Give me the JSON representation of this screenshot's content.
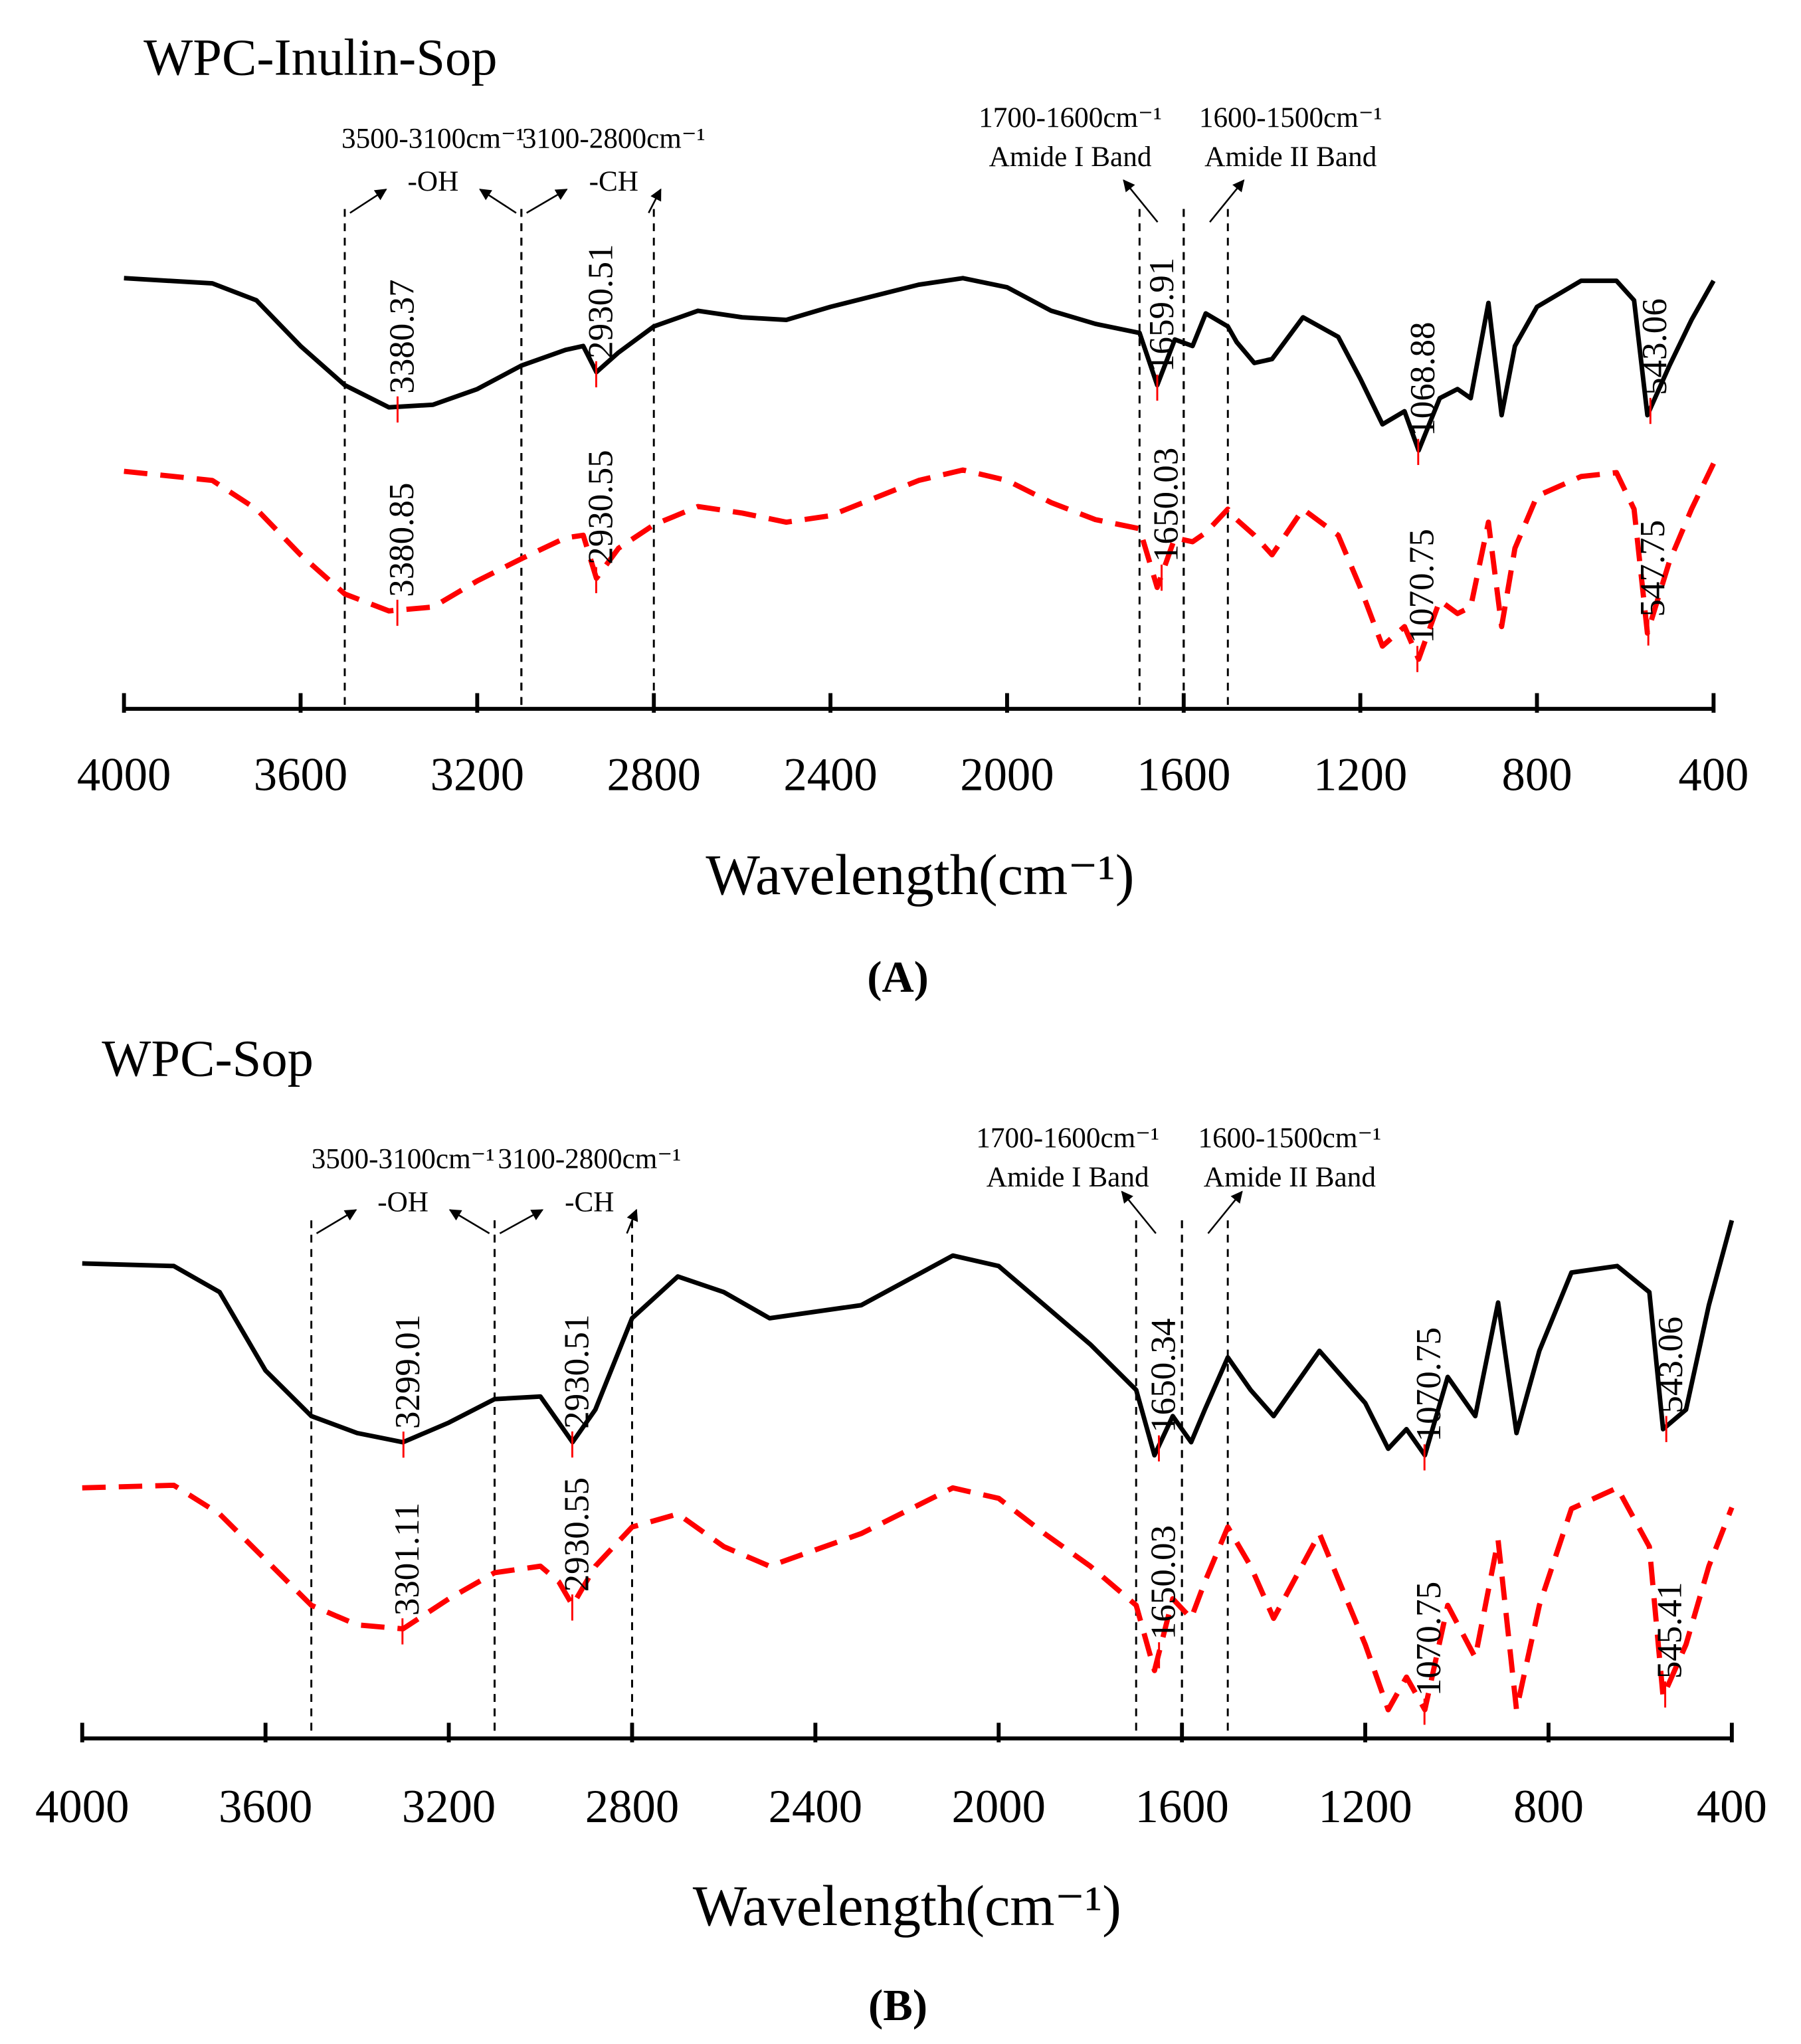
{
  "chart_data": [
    {
      "type": "line",
      "title": "WPC-Inulin-Sop",
      "xlabel": "Wavelength(cm⁻¹)",
      "panel": "(A)",
      "xlim": [
        4000,
        400
      ],
      "xticks": [
        4000,
        3600,
        3200,
        2800,
        2400,
        2000,
        1600,
        1200,
        800,
        400
      ],
      "ylim": [
        0,
        100
      ],
      "bands": [
        {
          "range": [
            3500,
            3100
          ],
          "label": "3500-3100cm⁻¹",
          "group": "-OH"
        },
        {
          "range": [
            3100,
            2800
          ],
          "label": "3100-2800cm⁻¹",
          "group": "-CH"
        },
        {
          "range": [
            1700,
            1600
          ],
          "label": "1700-1600cm⁻¹",
          "group": "Amide I Band"
        },
        {
          "range": [
            1600,
            1500
          ],
          "label": "1600-1500cm⁻¹",
          "group": "Amide II Band"
        }
      ],
      "x": [
        4000,
        3800,
        3700,
        3600,
        3500,
        3400,
        3300,
        3200,
        3100,
        3000,
        2960,
        2930,
        2880,
        2800,
        2700,
        2600,
        2500,
        2400,
        2200,
        2100,
        2000,
        1900,
        1800,
        1700,
        1660,
        1620,
        1580,
        1550,
        1500,
        1480,
        1440,
        1400,
        1330,
        1250,
        1200,
        1150,
        1100,
        1068,
        1020,
        980,
        950,
        910,
        880,
        850,
        800,
        700,
        620,
        580,
        550,
        500,
        450,
        400
      ],
      "series": [
        {
          "color": "#000000",
          "style": "solid",
          "values": [
            82.5,
            81.5,
            78.25,
            69.5,
            62,
            57.75,
            58.25,
            61.25,
            65.75,
            68.75,
            69.5,
            64.5,
            68.25,
            73.25,
            76.25,
            75,
            74.5,
            77,
            81.25,
            82.5,
            80.75,
            76.25,
            73.75,
            72,
            62,
            70.75,
            69.5,
            75.75,
            73.25,
            70.25,
            66.25,
            67,
            75,
            71.25,
            63.25,
            54.5,
            57,
            49.5,
            59.5,
            61.25,
            59.5,
            77.75,
            56.25,
            69.5,
            77,
            82,
            82,
            78.25,
            56.25,
            65.75,
            74.5,
            82
          ],
          "peaks": [
            3380.37,
            2930.51,
            1659.91,
            1068.88,
            543.06
          ]
        },
        {
          "color": "#ff0000",
          "style": "dashed",
          "values": [
            45.5,
            43.75,
            38.25,
            29.5,
            22,
            18.75,
            19.5,
            24.5,
            28.75,
            32.75,
            33.25,
            25,
            30.75,
            35.25,
            38.75,
            37.5,
            35.75,
            37,
            43.75,
            45.75,
            43.75,
            39.5,
            36.25,
            34.5,
            23.25,
            32.75,
            32,
            33.75,
            38.25,
            36.25,
            33.25,
            29.5,
            38.25,
            33.25,
            23.25,
            12,
            15.75,
            9.5,
            20.75,
            18.25,
            19.5,
            35.75,
            15.75,
            30.75,
            40.75,
            44.5,
            45.25,
            38.25,
            14.5,
            28.25,
            38.25,
            47
          ],
          "peaks": [
            3380.85,
            2930.55,
            1650.03,
            1070.75,
            547.75
          ]
        }
      ]
    },
    {
      "type": "line",
      "title": "WPC-Sop",
      "xlabel": "Wavelength(cm⁻¹)",
      "panel": "(B)",
      "xlim": [
        4000,
        400
      ],
      "xticks": [
        4000,
        3600,
        3200,
        2800,
        2400,
        2000,
        1600,
        1200,
        800,
        400
      ],
      "ylim": [
        0,
        100
      ],
      "bands": [
        {
          "range": [
            3500,
            3100
          ],
          "label": "3500-3100cm⁻¹",
          "group": "-OH"
        },
        {
          "range": [
            3100,
            2800
          ],
          "label": "3100-2800cm⁻¹",
          "group": "-CH"
        },
        {
          "range": [
            1700,
            1600
          ],
          "label": "1700-1600cm⁻¹",
          "group": "Amide I Band"
        },
        {
          "range": [
            1600,
            1500
          ],
          "label": "1600-1500cm⁻¹",
          "group": "Amide II Band"
        }
      ],
      "x": [
        4000,
        3800,
        3700,
        3600,
        3500,
        3400,
        3300,
        3200,
        3100,
        3000,
        2960,
        2930,
        2880,
        2800,
        2700,
        2600,
        2500,
        2300,
        2100,
        2000,
        1900,
        1800,
        1700,
        1660,
        1620,
        1580,
        1550,
        1500,
        1450,
        1400,
        1300,
        1200,
        1150,
        1110,
        1070,
        1020,
        960,
        910,
        870,
        820,
        750,
        650,
        580,
        550,
        500,
        450,
        400
      ],
      "series": [
        {
          "color": "#000000",
          "style": "solid",
          "values": [
            91,
            90.5,
            85.5,
            70.5,
            61.75,
            58.5,
            56.75,
            60.5,
            65,
            65.5,
            60.5,
            56.75,
            63,
            80.5,
            88.5,
            85.5,
            80.5,
            83,
            92.5,
            90.5,
            83,
            75.5,
            66.75,
            54.25,
            61.75,
            56.75,
            63,
            73,
            66.75,
            61.75,
            74.25,
            64.25,
            55.5,
            59.25,
            54.25,
            69.25,
            61.75,
            83.5,
            58.5,
            74.25,
            89.25,
            90.5,
            85.5,
            59.25,
            63,
            83,
            99.25
          ],
          "peaks": [
            3299.01,
            2930.51,
            1650.34,
            1070.75,
            543.06
          ]
        },
        {
          "color": "#ff0000",
          "style": "dashed",
          "values": [
            48,
            48.5,
            43,
            34.25,
            25.5,
            21.75,
            21,
            26.75,
            31.75,
            33,
            30,
            25.5,
            33,
            40.5,
            43,
            36.75,
            33,
            39.25,
            48,
            46,
            39.25,
            33,
            25.5,
            13,
            26.75,
            23,
            30,
            40.5,
            33,
            23,
            39.25,
            18,
            5.5,
            11.75,
            5.5,
            25.5,
            15.5,
            38,
            5.5,
            25.5,
            44,
            48,
            36.75,
            8,
            18,
            33,
            44.25
          ],
          "peaks": [
            3301.11,
            2930.55,
            1650.03,
            1070.75,
            545.41
          ]
        }
      ]
    }
  ]
}
